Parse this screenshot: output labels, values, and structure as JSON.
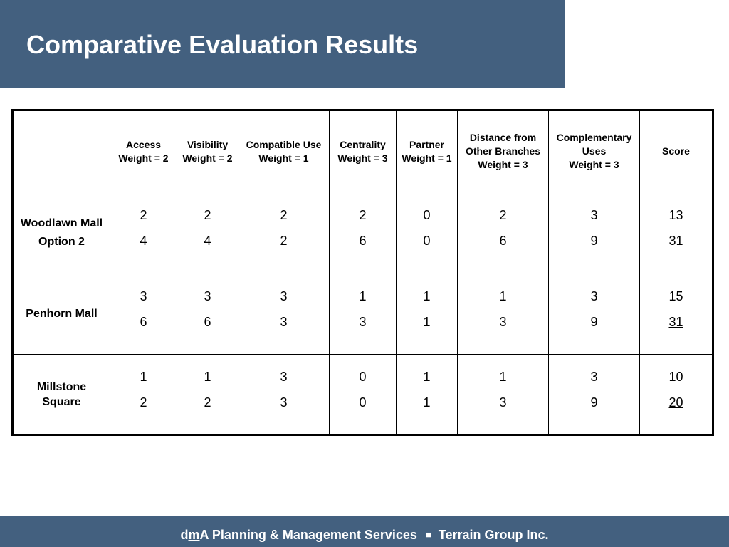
{
  "slide": {
    "title": "Comparative Evaluation Results"
  },
  "table": {
    "corner": "",
    "headers": [
      [
        "Access",
        "Weight = 2"
      ],
      [
        "Visibility",
        "Weight = 2"
      ],
      [
        "Compatible Use",
        "Weight = 1"
      ],
      [
        "Centrality",
        "Weight = 3"
      ],
      [
        "Partner",
        "Weight = 1"
      ],
      [
        "Distance from",
        "Other Branches",
        "Weight = 3"
      ],
      [
        "Complementary",
        "Uses",
        "Weight = 3"
      ],
      [
        "Score"
      ]
    ],
    "rows": [
      {
        "label": [
          "Woodlawn Mall",
          "Option 2"
        ],
        "cells": [
          [
            "2",
            "4"
          ],
          [
            "2",
            "4"
          ],
          [
            "2",
            "2"
          ],
          [
            "2",
            "6"
          ],
          [
            "0",
            "0"
          ],
          [
            "2",
            "6"
          ],
          [
            "3",
            "9"
          ],
          [
            "13",
            "31"
          ]
        ]
      },
      {
        "label": [
          "Penhorn Mall"
        ],
        "cells": [
          [
            "3",
            "6"
          ],
          [
            "3",
            "6"
          ],
          [
            "3",
            "3"
          ],
          [
            "1",
            "3"
          ],
          [
            "1",
            "1"
          ],
          [
            "1",
            "3"
          ],
          [
            "3",
            "9"
          ],
          [
            "15",
            "31"
          ]
        ]
      },
      {
        "label": [
          "Millstone",
          "Square"
        ],
        "cells": [
          [
            "1",
            "2"
          ],
          [
            "1",
            "2"
          ],
          [
            "3",
            "3"
          ],
          [
            "0",
            "0"
          ],
          [
            "1",
            "1"
          ],
          [
            "1",
            "3"
          ],
          [
            "3",
            "9"
          ],
          [
            "10",
            "20"
          ]
        ]
      }
    ]
  },
  "footer": {
    "company_d": "d",
    "company_m": "m",
    "company_rest": "A Planning & Management Services",
    "separator": "■",
    "partner": "Terrain Group Inc."
  },
  "colors": {
    "band": "#43607f",
    "text_on_band": "#ffffff"
  }
}
